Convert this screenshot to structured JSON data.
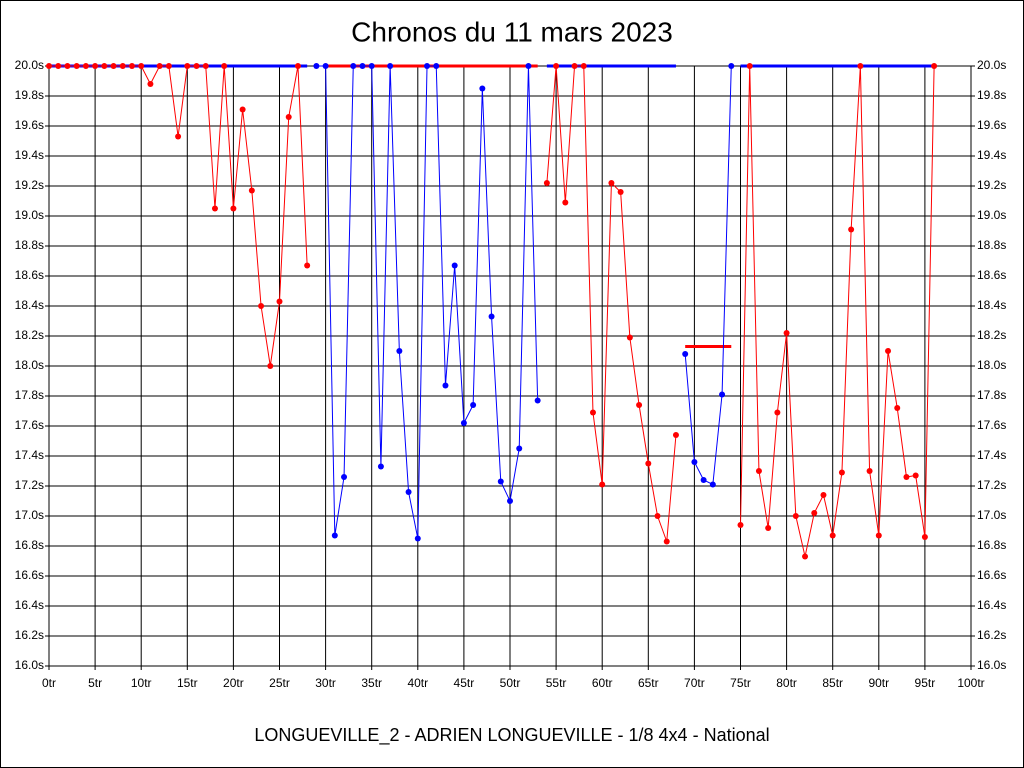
{
  "chart_data": {
    "type": "line",
    "title": "Chronos du 11 mars 2023",
    "xlabel": "LONGUEVILLE_2 - ADRIEN LONGUEVILLE - 1/8 4x4 - National",
    "x": [
      0,
      1,
      2,
      3,
      4,
      5,
      6,
      7,
      8,
      9,
      10,
      11,
      12,
      13,
      14,
      15,
      16,
      17,
      18,
      19,
      20,
      21,
      22,
      23,
      24,
      25,
      26,
      27,
      28,
      29,
      30,
      31,
      32,
      33,
      34,
      35,
      36,
      37,
      38,
      39,
      40,
      41,
      42,
      43,
      44,
      45,
      46,
      47,
      48,
      49,
      50,
      51,
      52,
      53,
      54,
      55,
      56,
      57,
      58,
      59,
      60,
      61,
      62,
      63,
      64,
      65,
      66,
      67,
      68,
      69,
      70,
      71,
      72,
      73,
      74,
      75,
      76,
      77,
      78,
      79,
      80,
      81,
      82,
      83,
      84,
      85,
      86,
      87,
      88,
      89,
      90,
      91,
      92,
      93,
      94,
      95,
      96
    ],
    "series": [
      {
        "color": "#ff0000",
        "values": [
          20,
          20,
          20,
          20,
          20,
          20,
          20,
          20,
          20,
          20,
          20,
          19.88,
          20,
          20,
          19.53,
          20,
          20,
          20,
          19.05,
          20,
          19.05,
          19.71,
          19.17,
          18.4,
          18.0,
          18.43,
          19.66,
          20,
          18.67,
          null,
          null,
          null,
          null,
          null,
          null,
          null,
          null,
          null,
          null,
          null,
          null,
          null,
          null,
          null,
          null,
          null,
          null,
          null,
          null,
          null,
          null,
          null,
          null,
          null,
          19.22,
          20,
          19.09,
          20,
          20,
          17.69,
          17.21,
          19.22,
          19.16,
          18.19,
          17.74,
          17.35,
          17.0,
          16.83,
          17.54,
          null,
          null,
          null,
          null,
          null,
          null,
          16.94,
          20,
          17.3,
          16.92,
          17.69,
          18.22,
          17.0,
          16.73,
          17.02,
          17.14,
          16.87,
          17.29,
          18.91,
          20,
          17.3,
          16.87,
          18.1,
          17.72,
          17.26,
          17.27,
          16.86,
          20
        ]
      },
      {
        "color": "#0000ff",
        "values": [
          null,
          null,
          null,
          null,
          null,
          null,
          null,
          null,
          null,
          null,
          null,
          null,
          null,
          null,
          null,
          null,
          null,
          null,
          null,
          null,
          null,
          null,
          null,
          null,
          null,
          null,
          null,
          null,
          null,
          20,
          20,
          16.87,
          17.26,
          20,
          20,
          20,
          17.33,
          20,
          18.1,
          17.16,
          16.85,
          20,
          20,
          17.87,
          18.67,
          17.62,
          17.74,
          19.85,
          18.33,
          17.23,
          17.1,
          17.45,
          20,
          17.77,
          null,
          null,
          null,
          null,
          null,
          null,
          null,
          null,
          null,
          null,
          null,
          null,
          null,
          null,
          null,
          18.08,
          17.36,
          17.24,
          17.21,
          17.81,
          20,
          null,
          null,
          null,
          null,
          null,
          null,
          null,
          null,
          null,
          null,
          null,
          null,
          null,
          null,
          null,
          null,
          null,
          null,
          null,
          null,
          null,
          null
        ]
      }
    ],
    "level_lines": [
      {
        "color": "#0000ff",
        "x": [
          0,
          28
        ],
        "value": 20
      },
      {
        "color": "#ff0000",
        "x": [
          30,
          53
        ],
        "value": 20
      },
      {
        "color": "#0000ff",
        "x": [
          54,
          68
        ],
        "value": 20
      },
      {
        "color": "#ff0000",
        "x": [
          69,
          74
        ],
        "value": 18.13
      },
      {
        "color": "#0000ff",
        "x": [
          75,
          96
        ],
        "value": 20
      }
    ],
    "xlim": [
      0,
      100
    ],
    "xticks": [
      {
        "value": 0,
        "label": "0tr"
      },
      {
        "value": 5,
        "label": "5tr"
      },
      {
        "value": 10,
        "label": "10tr"
      },
      {
        "value": 15,
        "label": "15tr"
      },
      {
        "value": 20,
        "label": "20tr"
      },
      {
        "value": 25,
        "label": "25tr"
      },
      {
        "value": 30,
        "label": "30tr"
      },
      {
        "value": 35,
        "label": "35tr"
      },
      {
        "value": 40,
        "label": "40tr"
      },
      {
        "value": 45,
        "label": "45tr"
      },
      {
        "value": 50,
        "label": "50tr"
      },
      {
        "value": 55,
        "label": "55tr"
      },
      {
        "value": 60,
        "label": "60tr"
      },
      {
        "value": 65,
        "label": "65tr"
      },
      {
        "value": 70,
        "label": "70tr"
      },
      {
        "value": 75,
        "label": "75tr"
      },
      {
        "value": 80,
        "label": "80tr"
      },
      {
        "value": 85,
        "label": "85tr"
      },
      {
        "value": 90,
        "label": "90tr"
      },
      {
        "value": 95,
        "label": "95tr"
      },
      {
        "value": 100,
        "label": "100tr"
      }
    ],
    "ylim": [
      16.0,
      20.0
    ],
    "yticks": [
      {
        "value": 16.0,
        "label": "16.0s"
      },
      {
        "value": 16.2,
        "label": "16.2s"
      },
      {
        "value": 16.4,
        "label": "16.4s"
      },
      {
        "value": 16.6,
        "label": "16.6s"
      },
      {
        "value": 16.8,
        "label": "16.8s"
      },
      {
        "value": 17.0,
        "label": "17.0s"
      },
      {
        "value": 17.2,
        "label": "17.2s"
      },
      {
        "value": 17.4,
        "label": "17.4s"
      },
      {
        "value": 17.6,
        "label": "17.6s"
      },
      {
        "value": 17.8,
        "label": "17.8s"
      },
      {
        "value": 18.0,
        "label": "18.0s"
      },
      {
        "value": 18.2,
        "label": "18.2s"
      },
      {
        "value": 18.4,
        "label": "18.4s"
      },
      {
        "value": 18.6,
        "label": "18.6s"
      },
      {
        "value": 18.8,
        "label": "18.8s"
      },
      {
        "value": 19.0,
        "label": "19.0s"
      },
      {
        "value": 19.2,
        "label": "19.2s"
      },
      {
        "value": 19.4,
        "label": "19.4s"
      },
      {
        "value": 19.6,
        "label": "19.6s"
      },
      {
        "value": 19.8,
        "label": "19.8s"
      },
      {
        "value": 20.0,
        "label": "20.0s"
      }
    ],
    "grid": true
  }
}
